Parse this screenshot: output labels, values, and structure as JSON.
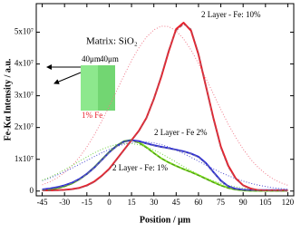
{
  "chart_data": {
    "type": "line",
    "xlabel": "Position / μm",
    "ylabel": "Fe-Kα Intensity / a.u.",
    "xlim": [
      -49,
      124
    ],
    "ylim": [
      -1500000,
      59000000
    ],
    "xticks": [
      -45,
      -30,
      -15,
      0,
      15,
      30,
      45,
      60,
      75,
      90,
      105,
      120
    ],
    "yticks": [
      0,
      {
        "value": 10000000,
        "label": "1x10⁷"
      },
      {
        "value": 20000000,
        "label": "2x10⁷"
      },
      {
        "value": 30000000,
        "label": "3x10⁷"
      },
      {
        "value": 40000000,
        "label": "4x10⁷"
      },
      {
        "value": 50000000,
        "label": "5x10⁷"
      }
    ],
    "grid": false,
    "x": [
      -45,
      -40,
      -35,
      -30,
      -25,
      -20,
      -15,
      -10,
      -5,
      0,
      5,
      10,
      15,
      20,
      25,
      30,
      35,
      40,
      45,
      50,
      55,
      60,
      65,
      70,
      75,
      80,
      85,
      90,
      95,
      100,
      105,
      110,
      115,
      120
    ],
    "series": [
      {
        "color": "#f07a8a",
        "style": "dotted",
        "values": [
          1950000,
          2880000,
          4140000,
          5810000,
          7960000,
          10640000,
          13880000,
          17680000,
          22000000,
          26680000,
          31560000,
          36400000,
          41080000,
          45140000,
          48460000,
          50750000,
          51900000,
          51790000,
          50390000,
          47890000,
          44410000,
          40140000,
          35460000,
          30580000,
          25690000,
          21060000,
          16900000,
          13210000,
          10040000,
          7490000,
          5460000,
          3850000,
          2650000,
          1820000
        ]
      },
      {
        "color": "#4a4ad0",
        "style": "dotted",
        "values": [
          3270000,
          4090000,
          5040000,
          6080000,
          7210000,
          8420000,
          9640000,
          10870000,
          12040000,
          13110000,
          14030000,
          14740000,
          15240000,
          15500000,
          15450000,
          15160000,
          14620000,
          13860000,
          12910000,
          11810000,
          10630000,
          9410000,
          8170000,
          6980000,
          5860000,
          4840000,
          3920000,
          3130000,
          2450000,
          1890000,
          1430000,
          1050000,
          780000,
          560000
        ]
      },
      {
        "color": "#6fd040",
        "style": "dotted",
        "values": [
          3380000,
          4340000,
          5450000,
          6680000,
          8000000,
          9380000,
          10730000,
          12020000,
          13140000,
          14040000,
          14670000,
          14970000,
          14940000,
          14570000,
          13880000,
          12930000,
          11760000,
          10470000,
          9110000,
          7730000,
          6420000,
          5210000,
          4130000,
          3200000,
          2430000,
          1800000,
          1310000,
          920000,
          630000,
          440000,
          290000,
          180000,
          120000,
          80000
        ]
      },
      {
        "color": "#7ee01e",
        "style": "solid",
        "values": [
          300000,
          500000,
          900000,
          1500000,
          2400000,
          3700000,
          5400000,
          7500000,
          9900000,
          12300000,
          14300000,
          15700000,
          16100000,
          15300000,
          13800000,
          12000000,
          10300000,
          9000000,
          7900000,
          6900000,
          6000000,
          5000000,
          3900000,
          2800000,
          1800000,
          1000000,
          500000,
          200000,
          100000,
          100000,
          100000,
          100000,
          100000,
          100000
        ]
      },
      {
        "color": "#2a2ad8",
        "style": "solid",
        "values": [
          500000,
          800000,
          1200000,
          1800000,
          2600000,
          3800000,
          5400000,
          7400000,
          9800000,
          12200000,
          14200000,
          15600000,
          16000000,
          15700000,
          15000000,
          14400000,
          13900000,
          13500000,
          13000000,
          12500000,
          11800000,
          10800000,
          8800000,
          6000000,
          3300000,
          1500000,
          700000,
          400000,
          300000,
          300000,
          300000,
          300000,
          300000,
          300000
        ]
      },
      {
        "color": "#e8202a",
        "style": "solid",
        "values": [
          200000,
          200000,
          300000,
          400000,
          600000,
          1000000,
          1800000,
          3000000,
          4800000,
          7000000,
          10000000,
          13000000,
          16000000,
          19000000,
          23000000,
          29000000,
          36000000,
          44000000,
          51000000,
          53000000,
          50500000,
          43000000,
          33000000,
          23000000,
          14000000,
          8000000,
          4000000,
          1800000,
          800000,
          300000,
          200000,
          200000,
          200000,
          200000
        ]
      },
      {
        "color": "#4a8a20",
        "style": "dashed",
        "values": [
          200000,
          400000,
          800000,
          1400000,
          2300000,
          3600000,
          5300000,
          7400000,
          9800000,
          12200000,
          14200000,
          15600000,
          15900000,
          15100000,
          13600000,
          11900000,
          10300000,
          9000000,
          7900000,
          6900000,
          5900000,
          4900000,
          3800000,
          2700000,
          1700000,
          900000,
          400000,
          150000,
          50000,
          0,
          0,
          0,
          0,
          0
        ]
      },
      {
        "color": "#7070a0",
        "style": "dashed",
        "values": [
          400000,
          700000,
          1100000,
          1700000,
          2500000,
          3700000,
          5300000,
          7300000,
          9700000,
          12000000,
          14000000,
          15400000,
          15800000,
          15500000,
          14900000,
          14300000,
          13800000,
          13400000,
          12900000,
          12400000,
          11700000,
          10600000,
          8600000,
          5800000,
          3200000,
          1400000,
          600000,
          300000,
          200000,
          200000,
          200000,
          200000,
          200000,
          200000
        ]
      },
      {
        "color": "#b05060",
        "style": "dashed",
        "values": [
          100000,
          100000,
          200000,
          300000,
          500000,
          900000,
          1600000,
          2800000,
          4600000,
          6800000,
          9800000,
          12800000,
          15800000,
          18800000,
          22800000,
          29000000,
          36500000,
          44500000,
          50500000,
          52500000,
          51000000,
          43500000,
          33000000,
          22500000,
          13500000,
          7500000,
          3800000,
          1700000,
          700000,
          300000,
          100000,
          50000,
          0,
          0
        ]
      }
    ],
    "annotations": [
      "2 Layer - Fe: 10%",
      "2 Layer - Fe 2%",
      "2 Layer - Fe: 1%"
    ],
    "inset": {
      "title": "Matrix: SiO₂",
      "widths": [
        "40μm",
        "40μm"
      ],
      "label": "1% Fe"
    }
  }
}
